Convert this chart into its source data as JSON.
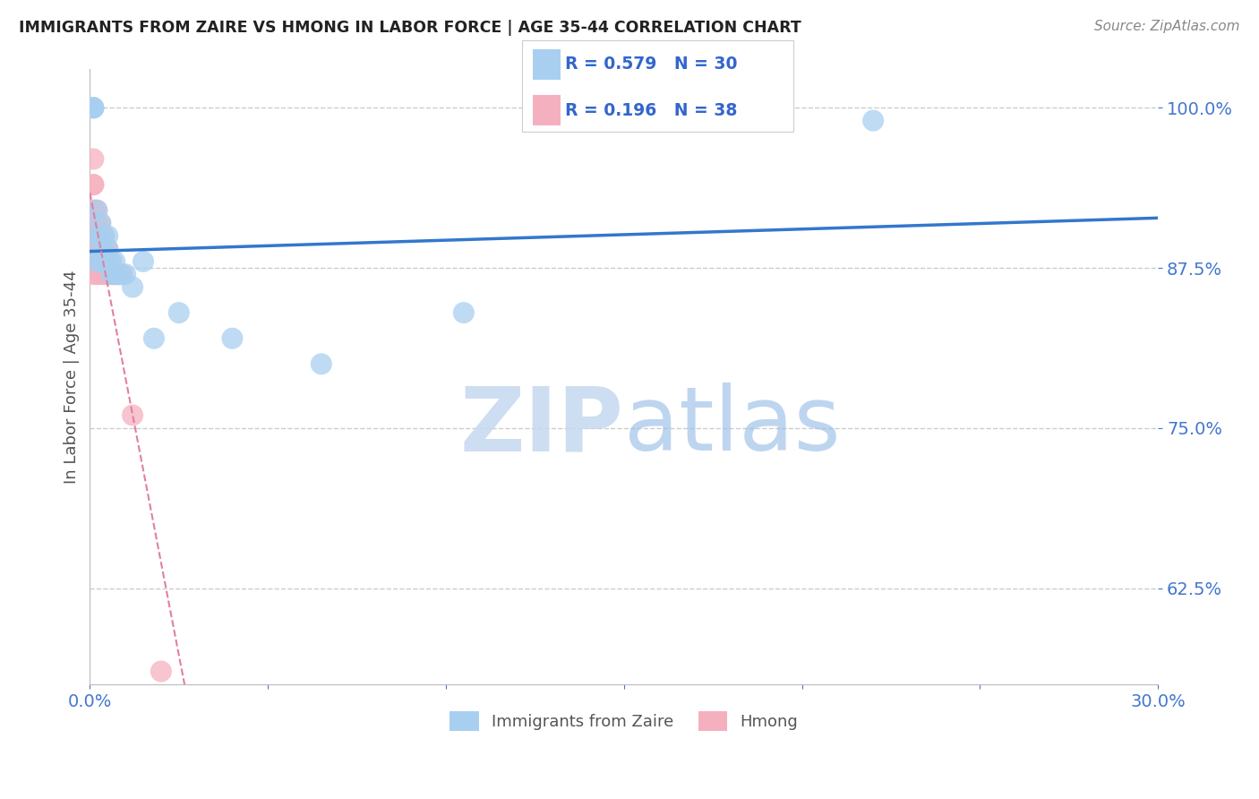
{
  "title": "IMMIGRANTS FROM ZAIRE VS HMONG IN LABOR FORCE | AGE 35-44 CORRELATION CHART",
  "source": "Source: ZipAtlas.com",
  "ylabel": "In Labor Force | Age 35-44",
  "xmin": 0.0,
  "xmax": 0.3,
  "ymin": 0.55,
  "ymax": 1.03,
  "yticks": [
    0.625,
    0.75,
    0.875,
    1.0
  ],
  "ytick_labels": [
    "62.5%",
    "75.0%",
    "87.5%",
    "100.0%"
  ],
  "xticks": [
    0.0,
    0.05,
    0.1,
    0.15,
    0.2,
    0.25,
    0.3
  ],
  "xtick_labels": [
    "0.0%",
    "",
    "",
    "",
    "",
    "",
    "30.0%"
  ],
  "zaire_R": 0.579,
  "zaire_N": 30,
  "hmong_R": 0.196,
  "hmong_N": 38,
  "zaire_color": "#a8cff0",
  "hmong_color": "#f5b0c0",
  "zaire_line_color": "#3377cc",
  "hmong_line_color": "#e080a0",
  "background_color": "#ffffff",
  "grid_color": "#cccccc",
  "title_color": "#222222",
  "axis_label_color": "#555555",
  "tick_color": "#4477cc",
  "watermark_color": "#d0e4f8",
  "legend_text_color": "#3366cc",
  "zaire_x": [
    0.001,
    0.001,
    0.001,
    0.002,
    0.002,
    0.002,
    0.003,
    0.003,
    0.003,
    0.003,
    0.004,
    0.004,
    0.005,
    0.005,
    0.005,
    0.006,
    0.006,
    0.007,
    0.007,
    0.008,
    0.009,
    0.01,
    0.012,
    0.015,
    0.018,
    0.025,
    0.04,
    0.065,
    0.105,
    0.22
  ],
  "zaire_y": [
    1.0,
    1.0,
    1.0,
    0.92,
    0.9,
    0.88,
    0.91,
    0.9,
    0.89,
    0.88,
    0.9,
    0.88,
    0.9,
    0.89,
    0.88,
    0.88,
    0.87,
    0.88,
    0.87,
    0.87,
    0.87,
    0.87,
    0.86,
    0.88,
    0.82,
    0.84,
    0.82,
    0.8,
    0.84,
    0.99
  ],
  "hmong_x": [
    0.001,
    0.001,
    0.001,
    0.001,
    0.001,
    0.001,
    0.001,
    0.001,
    0.001,
    0.001,
    0.001,
    0.002,
    0.002,
    0.002,
    0.002,
    0.002,
    0.002,
    0.002,
    0.003,
    0.003,
    0.003,
    0.003,
    0.003,
    0.003,
    0.004,
    0.004,
    0.004,
    0.004,
    0.005,
    0.005,
    0.005,
    0.006,
    0.006,
    0.007,
    0.008,
    0.009,
    0.012,
    0.02
  ],
  "hmong_y": [
    0.96,
    0.94,
    0.94,
    0.92,
    0.92,
    0.9,
    0.9,
    0.88,
    0.88,
    0.88,
    0.87,
    0.92,
    0.91,
    0.9,
    0.89,
    0.88,
    0.88,
    0.87,
    0.91,
    0.9,
    0.89,
    0.88,
    0.88,
    0.87,
    0.9,
    0.89,
    0.88,
    0.87,
    0.89,
    0.88,
    0.87,
    0.88,
    0.87,
    0.87,
    0.87,
    0.87,
    0.76,
    0.56
  ]
}
